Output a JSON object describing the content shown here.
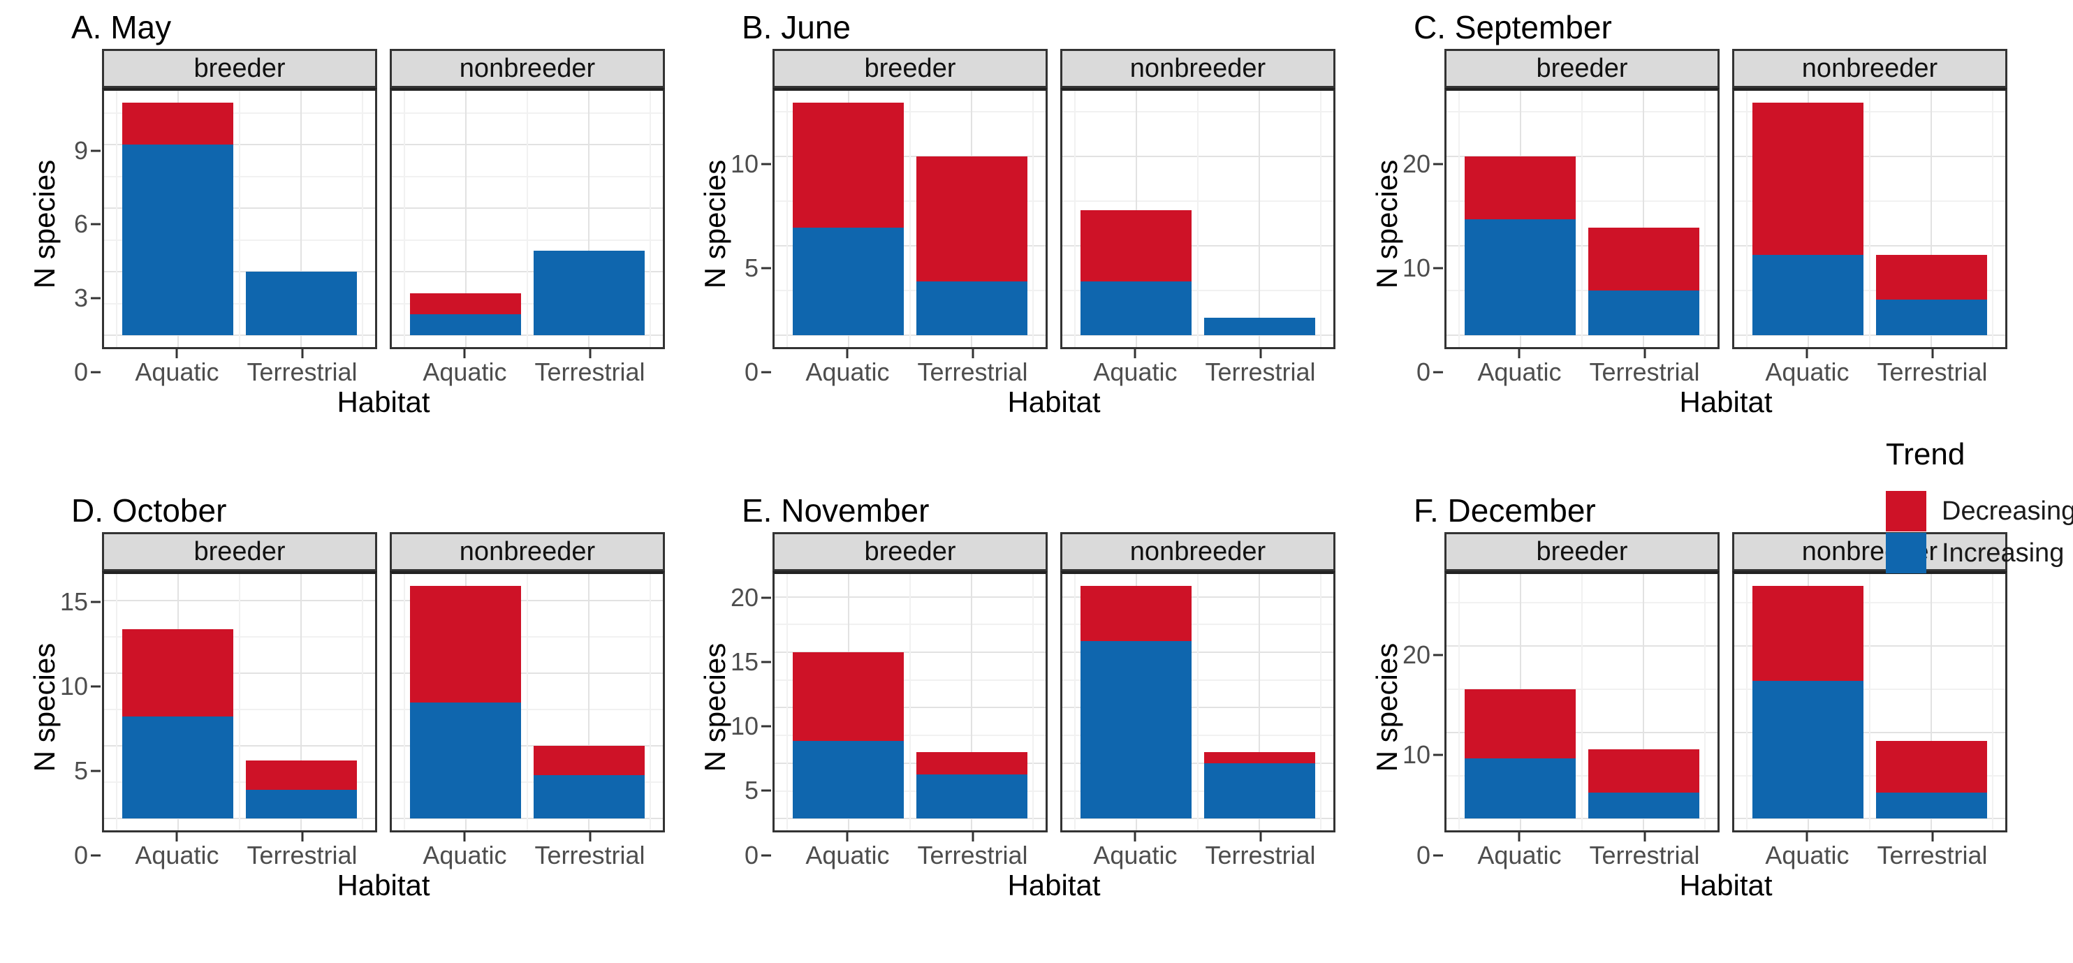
{
  "colors": {
    "decreasing": "#CE1227",
    "increasing": "#0F66AE",
    "strip_bg": "#DADADA",
    "panel_border": "#333333",
    "grid_major": "#E2E2E2",
    "grid_minor": "#F1F1F1",
    "axis_text": "#4D4D4D"
  },
  "legend": {
    "title": "Trend",
    "items": [
      {
        "label": "Decreasing",
        "color_key": "decreasing"
      },
      {
        "label": "Increasing",
        "color_key": "increasing"
      }
    ]
  },
  "chart_data": [
    {
      "type": "bar",
      "stacked": true,
      "title": "A. May",
      "xlabel": "Habitat",
      "ylabel": "N species",
      "yticks": [
        0,
        3,
        6,
        9
      ],
      "ylim": [
        0,
        11
      ],
      "grid": true,
      "legend_position": "right",
      "facets": [
        {
          "label": "breeder",
          "categories": [
            "Aquatic",
            "Terrestrial"
          ],
          "series": [
            {
              "name": "Increasing",
              "values": [
                9,
                3
              ]
            },
            {
              "name": "Decreasing",
              "values": [
                2,
                0
              ]
            }
          ]
        },
        {
          "label": "nonbreeder",
          "categories": [
            "Aquatic",
            "Terrestrial"
          ],
          "series": [
            {
              "name": "Increasing",
              "values": [
                1,
                4
              ]
            },
            {
              "name": "Decreasing",
              "values": [
                1,
                0
              ]
            }
          ]
        }
      ]
    },
    {
      "type": "bar",
      "stacked": true,
      "title": "B. June",
      "xlabel": "Habitat",
      "ylabel": "N species",
      "yticks": [
        0,
        5,
        10
      ],
      "ylim": [
        0,
        13
      ],
      "grid": true,
      "legend_position": "right",
      "facets": [
        {
          "label": "breeder",
          "categories": [
            "Aquatic",
            "Terrestrial"
          ],
          "series": [
            {
              "name": "Increasing",
              "values": [
                6,
                3
              ]
            },
            {
              "name": "Decreasing",
              "values": [
                7,
                7
              ]
            }
          ]
        },
        {
          "label": "nonbreeder",
          "categories": [
            "Aquatic",
            "Terrestrial"
          ],
          "series": [
            {
              "name": "Increasing",
              "values": [
                3,
                1
              ]
            },
            {
              "name": "Decreasing",
              "values": [
                4,
                0
              ]
            }
          ]
        }
      ]
    },
    {
      "type": "bar",
      "stacked": true,
      "title": "C. September",
      "xlabel": "Habitat",
      "ylabel": "N species",
      "yticks": [
        0,
        10,
        20
      ],
      "ylim": [
        0,
        26
      ],
      "grid": true,
      "legend_position": "right",
      "facets": [
        {
          "label": "breeder",
          "categories": [
            "Aquatic",
            "Terrestrial"
          ],
          "series": [
            {
              "name": "Increasing",
              "values": [
                13,
                5
              ]
            },
            {
              "name": "Decreasing",
              "values": [
                7,
                7
              ]
            }
          ]
        },
        {
          "label": "nonbreeder",
          "categories": [
            "Aquatic",
            "Terrestrial"
          ],
          "series": [
            {
              "name": "Increasing",
              "values": [
                9,
                4
              ]
            },
            {
              "name": "Decreasing",
              "values": [
                17,
                5
              ]
            }
          ]
        }
      ]
    },
    {
      "type": "bar",
      "stacked": true,
      "title": "D. October",
      "xlabel": "Habitat",
      "ylabel": "N species",
      "yticks": [
        0,
        5,
        10,
        15
      ],
      "ylim": [
        0,
        16
      ],
      "grid": true,
      "legend_position": "right",
      "facets": [
        {
          "label": "breeder",
          "categories": [
            "Aquatic",
            "Terrestrial"
          ],
          "series": [
            {
              "name": "Increasing",
              "values": [
                7,
                2
              ]
            },
            {
              "name": "Decreasing",
              "values": [
                6,
                2
              ]
            }
          ]
        },
        {
          "label": "nonbreeder",
          "categories": [
            "Aquatic",
            "Terrestrial"
          ],
          "series": [
            {
              "name": "Increasing",
              "values": [
                8,
                3
              ]
            },
            {
              "name": "Decreasing",
              "values": [
                8,
                2
              ]
            }
          ]
        }
      ]
    },
    {
      "type": "bar",
      "stacked": true,
      "title": "E. November",
      "xlabel": "Habitat",
      "ylabel": "N species",
      "yticks": [
        0,
        5,
        10,
        15,
        20
      ],
      "ylim": [
        0,
        21
      ],
      "grid": true,
      "legend_position": "right",
      "facets": [
        {
          "label": "breeder",
          "categories": [
            "Aquatic",
            "Terrestrial"
          ],
          "series": [
            {
              "name": "Increasing",
              "values": [
                7,
                4
              ]
            },
            {
              "name": "Decreasing",
              "values": [
                8,
                2
              ]
            }
          ]
        },
        {
          "label": "nonbreeder",
          "categories": [
            "Aquatic",
            "Terrestrial"
          ],
          "series": [
            {
              "name": "Increasing",
              "values": [
                16,
                5
              ]
            },
            {
              "name": "Decreasing",
              "values": [
                5,
                1
              ]
            }
          ]
        }
      ]
    },
    {
      "type": "bar",
      "stacked": true,
      "title": "F. December",
      "xlabel": "Habitat",
      "ylabel": "N species",
      "yticks": [
        0,
        10,
        20
      ],
      "ylim": [
        0,
        27
      ],
      "grid": true,
      "legend_position": "right",
      "facets": [
        {
          "label": "breeder",
          "categories": [
            "Aquatic",
            "Terrestrial"
          ],
          "series": [
            {
              "name": "Increasing",
              "values": [
                7,
                3
              ]
            },
            {
              "name": "Decreasing",
              "values": [
                8,
                5
              ]
            }
          ]
        },
        {
          "label": "nonbreeder",
          "categories": [
            "Aquatic",
            "Terrestrial"
          ],
          "series": [
            {
              "name": "Increasing",
              "values": [
                16,
                3
              ]
            },
            {
              "name": "Decreasing",
              "values": [
                11,
                6
              ]
            }
          ]
        }
      ]
    }
  ]
}
